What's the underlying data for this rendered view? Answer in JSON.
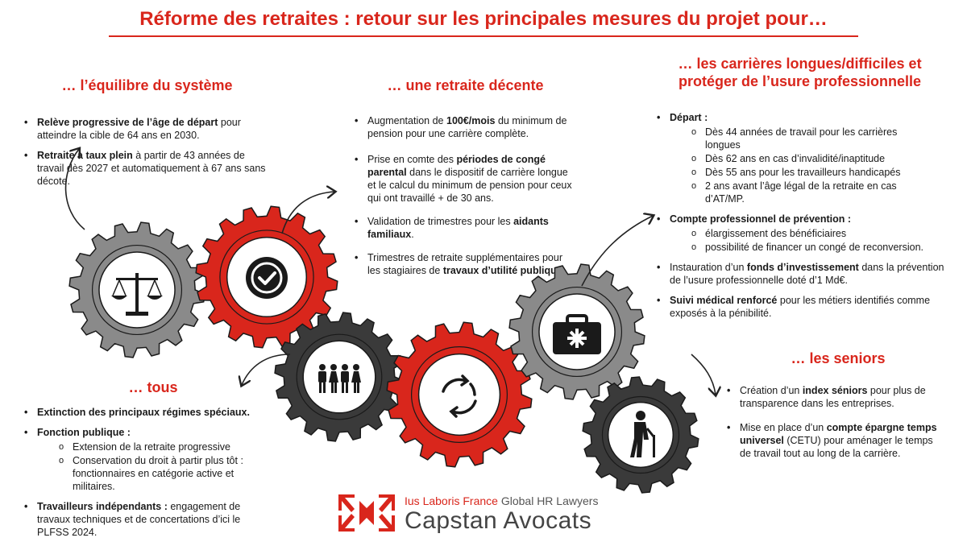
{
  "title": "Réforme des retraites : retour sur les principales mesures du projet pour…",
  "colors": {
    "accent": "#d9261c",
    "gear_grey": "#8a8a8a",
    "gear_dark": "#3a3a3a",
    "gear_red": "#d9261c"
  },
  "sections": {
    "equilibre": {
      "heading": "… l’équilibre du système",
      "items": [
        {
          "bold": "Relève progressive de l’âge de départ",
          "text": " pour atteindre la cible de 64 ans en 2030."
        },
        {
          "bold": "Retraite à taux plein",
          "text": " à partir de 43 années de travail dès 2027 et automatiquement à 67 ans sans décote."
        }
      ]
    },
    "decente": {
      "heading": "… une retraite décente",
      "items": [
        {
          "pre": "Augmentation de ",
          "bold": "100€/mois",
          "post": " du minimum de pension pour une carrière complète."
        },
        {
          "pre": "Prise en comte des ",
          "bold": "périodes de congé parental",
          "post": " dans le dispositif de carrière longue et le calcul du minimum  de pension pour ceux qui ont travaillé + de 30 ans."
        },
        {
          "pre": "Validation de trimestres pour les ",
          "bold": "aidants familiaux",
          "post": "."
        },
        {
          "pre": "Trimestres de retraite supplémentaires pour les stagiaires de ",
          "bold": "travaux d’utilité publique",
          "post": "."
        }
      ]
    },
    "carrieres": {
      "heading_line1": "… les carrières longues/difficiles et",
      "heading_line2": "protéger de l’usure professionnelle",
      "depart_label": "Départ :",
      "depart_items": [
        "Dès 44 années de travail pour les carrières longues",
        "Dès 62 ans en cas d’invalidité/inaptitude",
        "Dès 55 ans pour les travailleurs handicapés",
        "2 ans avant l’âge légal de la retraite en cas d’AT/MP."
      ],
      "compte_label": "Compte professionnel de prévention :",
      "compte_items": [
        "élargissement des bénéficiaires",
        "possibilité de financer un congé de reconversion."
      ],
      "fonds_pre": "Instauration d’un ",
      "fonds_bold": "fonds d’investissement",
      "fonds_post": " dans la prévention de l’usure professionnelle doté d’1 Md€.",
      "suivi_bold": "Suivi médical renforcé",
      "suivi_post": " pour les métiers identifiés comme exposés à la pénibilité."
    },
    "seniors": {
      "heading": "… les seniors",
      "items": [
        {
          "pre": "Création d’un ",
          "bold": "index séniors",
          "post": " pour plus de transparence dans les entreprises."
        },
        {
          "pre": "Mise en place d’un ",
          "bold": "compte épargne temps universel",
          "post": " (CETU) pour aménager le temps de travail tout au long de la carrière."
        }
      ]
    },
    "tous": {
      "heading": "… tous",
      "item1": "Extinction des principaux régimes spéciaux.",
      "fp_label": "Fonction publique :",
      "fp_items": [
        "Extension de la retraite progressive",
        "Conservation du droit à partir plus tôt : fonctionnaires en catégorie active et militaires."
      ],
      "ti_bold": "Travailleurs indépendants :",
      "ti_post": " engagement de travaux techniques et de concertations d’ici le PLFSS 2024."
    }
  },
  "gears": [
    {
      "name": "balance-icon",
      "color": "grey"
    },
    {
      "name": "checkmark-badge-icon",
      "color": "red"
    },
    {
      "name": "people-group-icon",
      "color": "dark"
    },
    {
      "name": "cycle-arrows-icon",
      "color": "red"
    },
    {
      "name": "medical-kit-icon",
      "color": "grey"
    },
    {
      "name": "elderly-person-icon",
      "color": "dark"
    }
  ],
  "logo": {
    "tagline_red": "Ius Laboris France",
    "tagline_grey": " Global HR Lawyers",
    "name": "Capstan Avocats"
  }
}
